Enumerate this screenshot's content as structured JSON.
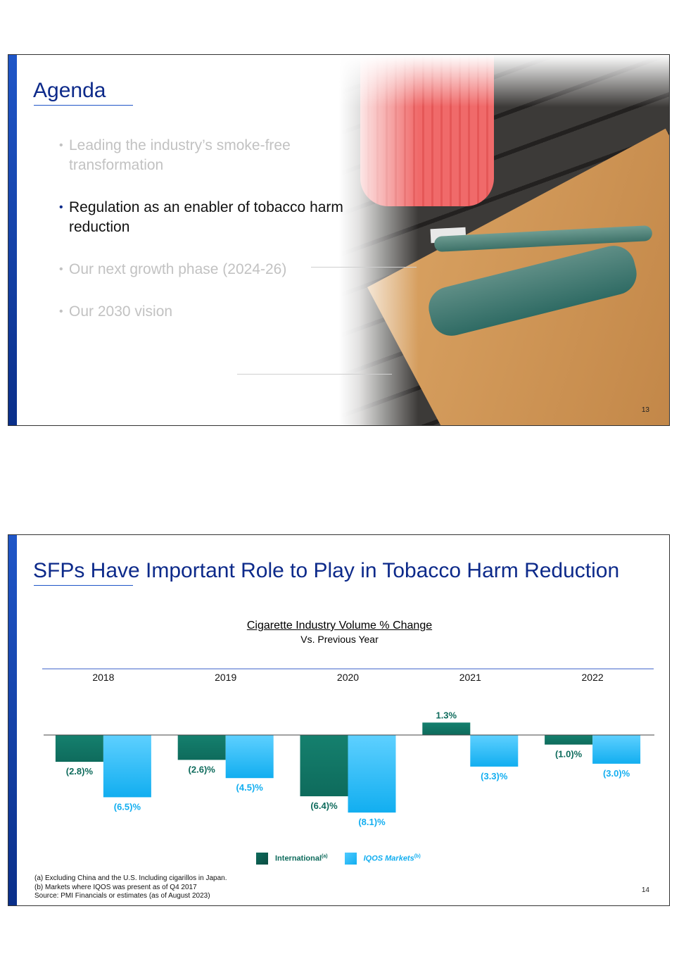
{
  "slide1": {
    "title": "Agenda",
    "items": [
      {
        "text": "Leading the industry’s smoke-free transformation",
        "state": "dim"
      },
      {
        "text": "Regulation as an enabler of tobacco harm reduction",
        "state": "active"
      },
      {
        "text": "Our next growth phase (2024-26)",
        "state": "dim"
      },
      {
        "text": "Our 2030 vision",
        "state": "dim"
      }
    ],
    "bullet": "•",
    "page_number": "13"
  },
  "slide2": {
    "title": "SFPs Have Important Role to Play in Tobacco Harm Reduction",
    "page_number": "14",
    "legend": {
      "international": "International",
      "international_sup": "(a)",
      "iqos": "IQOS Markets",
      "iqos_sup": "(b)"
    },
    "footnotes": [
      "(a) Excluding China and the U.S. Including cigarillos in Japan.",
      "(b) Markets where IQOS was present as of Q4 2017",
      "Source: PMI Financials or estimates (as of August 2023)"
    ]
  },
  "colors": {
    "brand_navy": "#0d2a8a",
    "accent_blue": "#1f56c8",
    "international": "#0e6b5c",
    "iqos": "#12aef0"
  },
  "chart_data": {
    "type": "bar",
    "title": "Cigarette Industry Volume % Change",
    "subtitle": "Vs. Previous Year",
    "categories": [
      "2018",
      "2019",
      "2020",
      "2021",
      "2022"
    ],
    "series": [
      {
        "name": "International",
        "values": [
          -2.8,
          -2.6,
          -6.4,
          1.3,
          -1.0
        ],
        "labels": [
          "(2.8)%",
          "(2.6)%",
          "(6.4)%",
          "1.3%",
          "(1.0)%"
        ]
      },
      {
        "name": "IQOS Markets",
        "values": [
          -6.5,
          -4.5,
          -8.1,
          -3.3,
          -3.0
        ],
        "labels": [
          "(6.5)%",
          "(4.5)%",
          "(8.1)%",
          "(3.3)%",
          "(3.0)%"
        ]
      }
    ],
    "legend_position": "bottom-center"
  }
}
